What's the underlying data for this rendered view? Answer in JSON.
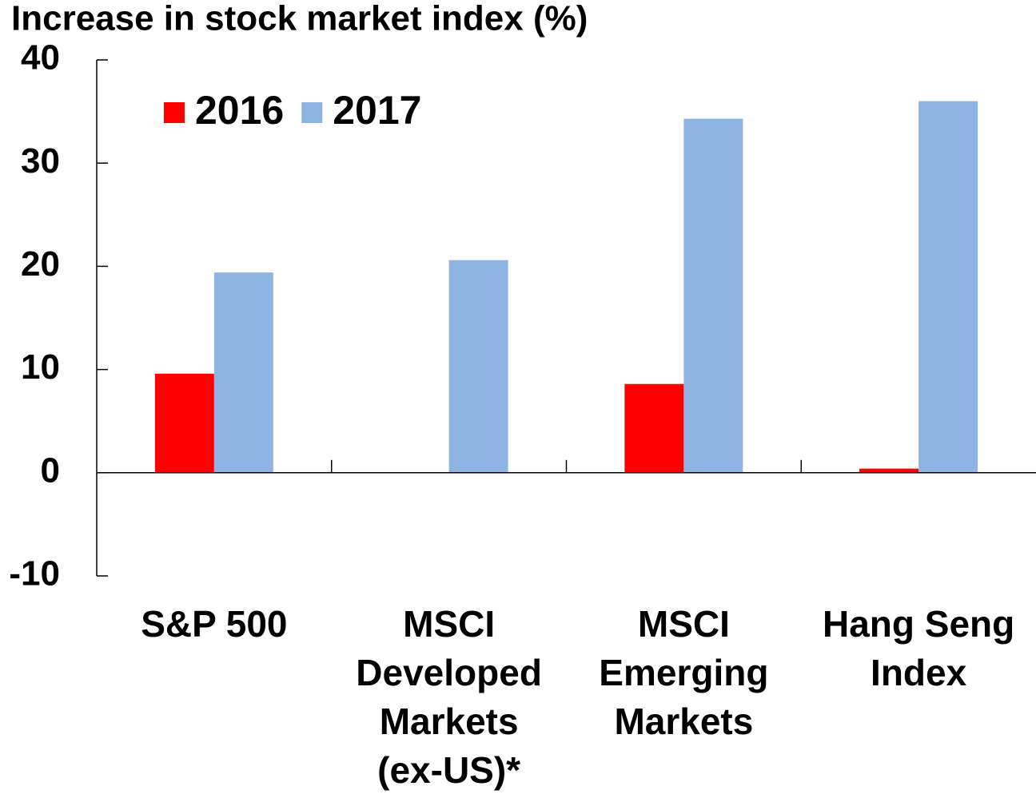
{
  "chart_data": {
    "type": "bar",
    "title": "Increase in stock market index (%)",
    "categories": [
      "S&P 500",
      "MSCI\nDeveloped\nMarkets\n(ex-US)*",
      "MSCI\nEmerging\nMarkets",
      "Hang Seng\nIndex"
    ],
    "series": [
      {
        "name": "2016",
        "color": "#ff0000",
        "values": [
          9.6,
          null,
          8.6,
          0.4
        ]
      },
      {
        "name": "2017",
        "color": "#8eb4e3",
        "values": [
          19.4,
          20.6,
          34.3,
          36.0
        ]
      }
    ],
    "ylim": [
      -10,
      40
    ],
    "yticks": [
      -10,
      0,
      10,
      20,
      30,
      40
    ],
    "legend": "top-left",
    "grid": false
  }
}
